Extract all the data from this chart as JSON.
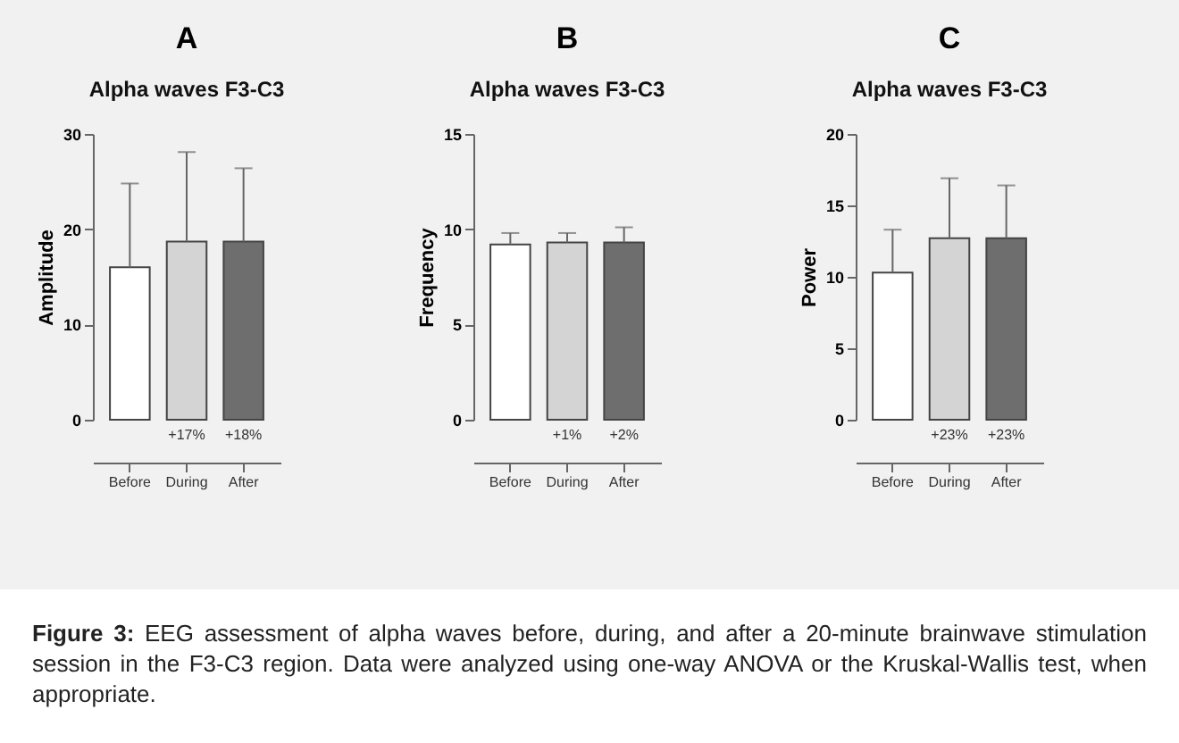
{
  "chart_data": [
    {
      "type": "bar",
      "title": "A",
      "subtitle": "Alpha waves F3-C3",
      "ylabel": "Amplitude",
      "categories": [
        "Before",
        "During",
        "After"
      ],
      "values": [
        16.0,
        18.7,
        18.7
      ],
      "errors": [
        [
          16.0,
          24.8
        ],
        [
          18.7,
          28.1
        ],
        [
          18.7,
          26.4
        ]
      ],
      "colors": [
        "#ffffff",
        "#d4d4d4",
        "#6e6e6e"
      ],
      "ylim": [
        0,
        30
      ],
      "yticks": [
        0,
        10,
        20,
        30
      ],
      "annotations": [
        "+17%",
        "+18%"
      ]
    },
    {
      "type": "bar",
      "title": "B",
      "subtitle": "Alpha waves F3-C3",
      "ylabel": "Frequency",
      "categories": [
        "Before",
        "During",
        "After"
      ],
      "values": [
        9.2,
        9.3,
        9.3
      ],
      "errors": [
        [
          9.2,
          9.8
        ],
        [
          9.3,
          9.8
        ],
        [
          9.3,
          10.1
        ]
      ],
      "colors": [
        "#ffffff",
        "#d4d4d4",
        "#6e6e6e"
      ],
      "ylim": [
        0,
        15
      ],
      "yticks": [
        0,
        5,
        10,
        15
      ],
      "annotations": [
        "+1%",
        "+2%"
      ]
    },
    {
      "type": "bar",
      "title": "C",
      "subtitle": "Alpha waves F3-C3",
      "ylabel": "Power",
      "categories": [
        "Before",
        "During",
        "After"
      ],
      "values": [
        10.3,
        12.7,
        12.7
      ],
      "errors": [
        [
          10.3,
          13.3
        ],
        [
          12.7,
          16.9
        ],
        [
          12.7,
          16.4
        ]
      ],
      "colors": [
        "#ffffff",
        "#d4d4d4",
        "#6e6e6e"
      ],
      "ylim": [
        0,
        20
      ],
      "yticks": [
        0,
        5,
        10,
        15,
        20
      ],
      "annotations": [
        "+23%",
        "+23%",
        "Figure 3: EEG assessment of alpha waves before, during, and after a 20-minute brainwave stimulation session in the F3-C3 region. Data were analyzed using one-way ANOVA or the Kruskal-Wallis test, when appropriate."
      ]
    }
  ]
}
